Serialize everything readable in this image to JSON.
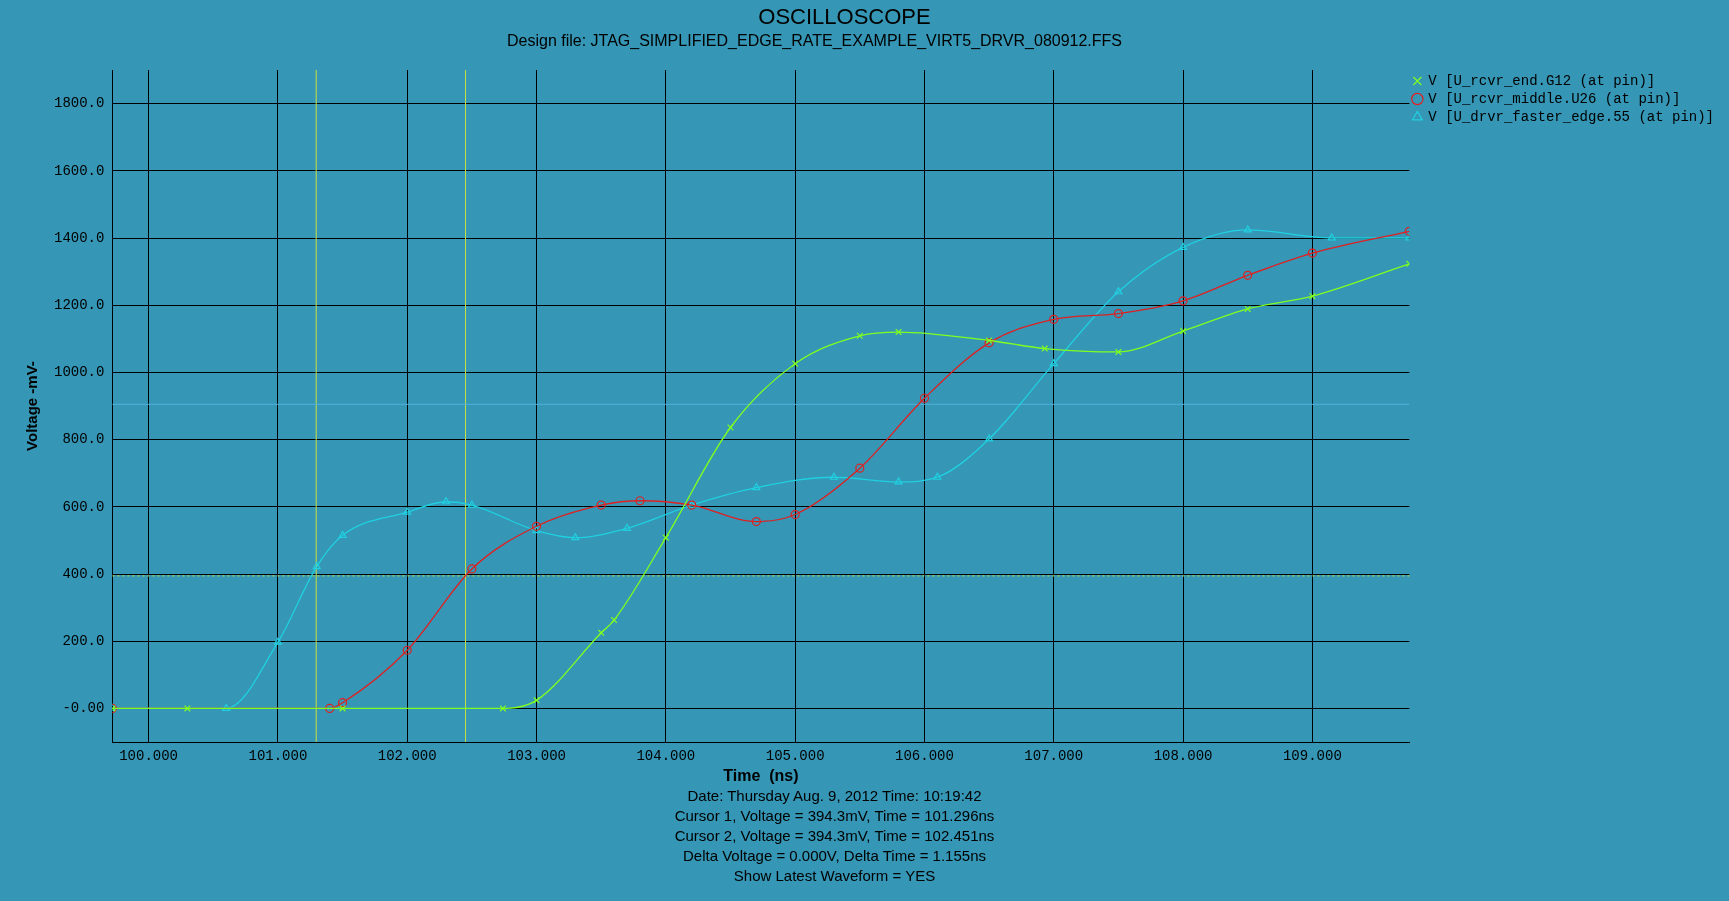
{
  "chart_data": {
    "type": "line",
    "title": "OSCILLOSCOPE",
    "subtitle": "Design file: JTAG_SIMPLIFIED_EDGE_RATE_EXAMPLE_VIRT5_DRVR_080912.FFS",
    "xlabel": "Time  (ns)",
    "ylabel": "Voltage -mV-",
    "xlim": [
      99.72,
      109.75
    ],
    "ylim": [
      -100,
      1900
    ],
    "xticks": [
      {
        "value": 100,
        "label": "100.000"
      },
      {
        "value": 101,
        "label": "101.000"
      },
      {
        "value": 102,
        "label": "102.000"
      },
      {
        "value": 103,
        "label": "103.000"
      },
      {
        "value": 104,
        "label": "104.000"
      },
      {
        "value": 105,
        "label": "105.000"
      },
      {
        "value": 106,
        "label": "106.000"
      },
      {
        "value": 107,
        "label": "107.000"
      },
      {
        "value": 108,
        "label": "108.000"
      },
      {
        "value": 109,
        "label": "109.000"
      }
    ],
    "yticks": [
      {
        "value": 0,
        "label": "-0.00"
      },
      {
        "value": 200,
        "label": "200.0"
      },
      {
        "value": 400,
        "label": "400.0"
      },
      {
        "value": 600,
        "label": "600.0"
      },
      {
        "value": 800,
        "label": "800.0"
      },
      {
        "value": 1000,
        "label": "1000.0"
      },
      {
        "value": 1200,
        "label": "1200.0"
      },
      {
        "value": 1400,
        "label": "1400.0"
      },
      {
        "value": 1600,
        "label": "1600.0"
      },
      {
        "value": 1800,
        "label": "1800.0"
      }
    ],
    "grid": true,
    "legend": "top right",
    "line_style": "solid",
    "series": [
      {
        "name": "V [U_rcvr_end.G12 (at pin)]",
        "color": "#80ff20",
        "marker": "cross",
        "x": [
          99.72,
          100.3,
          101.5,
          102.74,
          103.0,
          103.5,
          103.6,
          104.0,
          104.5,
          105.0,
          105.5,
          105.8,
          106.5,
          106.93,
          107.5,
          108.0,
          108.5,
          109.0,
          109.75
        ],
        "values": [
          0,
          0,
          0,
          0,
          24,
          225,
          263,
          508,
          836,
          1026,
          1109,
          1120,
          1095,
          1071,
          1061,
          1123,
          1189,
          1227,
          1323
        ]
      },
      {
        "name": "V [U_rcvr_middle.U26 (at pin)]",
        "color": "#e02020",
        "marker": "circle",
        "x": [
          99.72,
          101.4,
          101.5,
          102.0,
          102.5,
          103.0,
          103.5,
          103.8,
          104.2,
          104.7,
          105.0,
          105.5,
          106.0,
          106.5,
          107.0,
          107.5,
          108.0,
          108.5,
          109.0,
          109.75
        ],
        "values": [
          0,
          0,
          17,
          173,
          415,
          542,
          605,
          618,
          605,
          556,
          577,
          715,
          923,
          1088,
          1158,
          1175,
          1213,
          1289,
          1355,
          1420
        ]
      },
      {
        "name": "V [U_drvr_faster_edge.55 (at pin)]",
        "color": "#20d0e0",
        "marker": "triangle",
        "x": [
          99.72,
          100.6,
          101.0,
          101.3,
          101.5,
          102.0,
          102.3,
          102.5,
          103.0,
          103.3,
          103.7,
          104.2,
          104.7,
          105.3,
          105.8,
          106.1,
          106.5,
          107.0,
          107.5,
          108.0,
          108.5,
          109.15,
          109.75
        ],
        "values": [
          0,
          0,
          197,
          422,
          515,
          584,
          615,
          605,
          529,
          508,
          536,
          605,
          657,
          688,
          674,
          688,
          802,
          1026,
          1240,
          1372,
          1424,
          1400,
          1400
        ]
      }
    ],
    "ref_lines": [
      {
        "axis": "x",
        "value": 101.296,
        "color": "#c8e040",
        "line_style": "solid"
      },
      {
        "axis": "x",
        "value": 102.451,
        "color": "#c8e040",
        "line_style": "solid"
      },
      {
        "axis": "y",
        "value": 394.3,
        "color": "#c8e040",
        "line_style": "dotted"
      },
      {
        "axis": "y",
        "value": 905,
        "color": "#50b0e0",
        "line_style": "solid"
      }
    ],
    "annotations": [
      "Date: Thursday Aug. 9, 2012   Time: 10:19:42",
      "Cursor 1, Voltage = 394.3mV, Time = 101.296ns",
      "Cursor 2, Voltage = 394.3mV, Time = 102.451ns",
      "Delta Voltage = 0.000V,   Delta Time = 1.155ns",
      "Show Latest Waveform = YES"
    ]
  }
}
